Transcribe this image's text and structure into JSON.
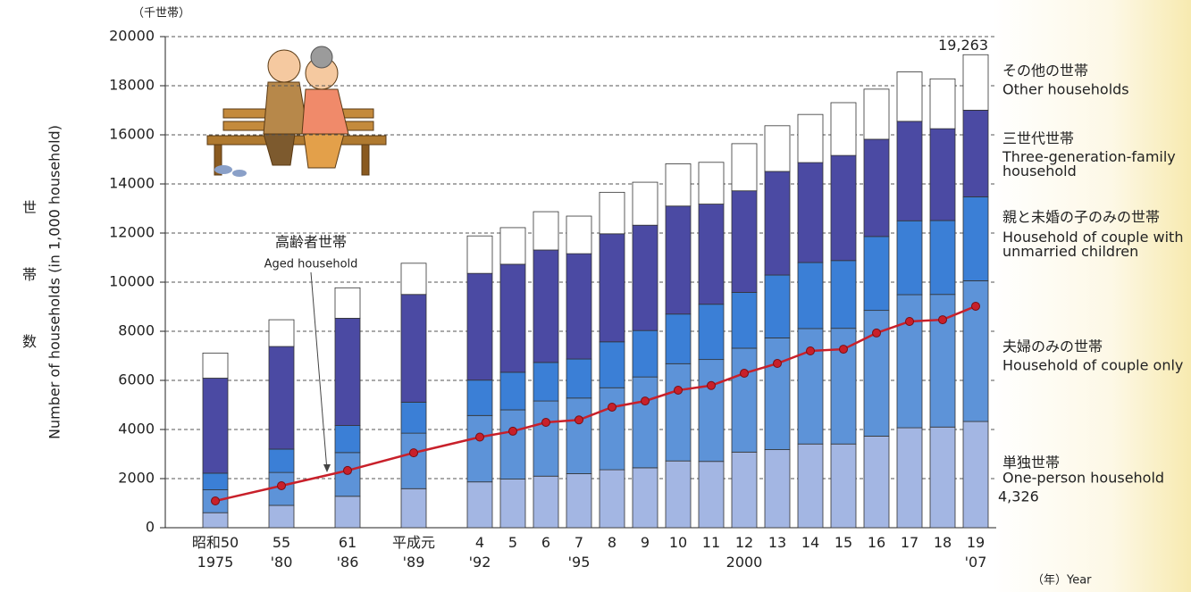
{
  "chart_data": {
    "type": "stacked_bar_line",
    "y_unit": "（千世帯）",
    "y_label_ja": "世帯数",
    "y_label": "Number of households (in 1,000 household)",
    "x_label": "（年）Year",
    "categories": [
      "昭和50\n1975",
      "55\n'80",
      "61\n'86",
      "平成元\n'89",
      "4\n'92",
      "5",
      "6",
      "7\n'95",
      "8",
      "9",
      "10",
      "11",
      "12\n2000",
      "13",
      "14",
      "15",
      "16",
      "17",
      "18",
      "19\n'07"
    ],
    "ylim": [
      0,
      20000
    ],
    "yticks": [
      0,
      2000,
      4000,
      6000,
      8000,
      10000,
      12000,
      14000,
      16000,
      18000,
      20000
    ],
    "grid": true,
    "series": [
      {
        "name": "単独世帯",
        "name_en": "One-person household",
        "color": "#a3b6e3",
        "values": [
          611,
          910,
          1280,
          1590,
          1865,
          1980,
          2100,
          2200,
          2360,
          2440,
          2720,
          2700,
          3080,
          3180,
          3410,
          3410,
          3730,
          4070,
          4100,
          4326
        ],
        "value_labels": [
          null,
          null,
          null,
          null,
          null,
          null,
          null,
          null,
          null,
          null,
          null,
          null,
          null,
          null,
          null,
          null,
          null,
          null,
          null,
          "4,326"
        ]
      },
      {
        "name": "夫婦のみの世帯",
        "name_en": "Household of couple only",
        "color": "#5d93d8",
        "values": [
          931,
          1340,
          1780,
          2260,
          2706,
          2820,
          3060,
          3080,
          3340,
          3700,
          3960,
          4150,
          4230,
          4550,
          4700,
          4710,
          5120,
          5420,
          5400,
          5732
        ]
      },
      {
        "name": "親と未婚の子のみの世帯",
        "name_en": "Household of couple with unmarried children",
        "color": "#3b7fd6",
        "values": [
          678,
          950,
          1100,
          1260,
          1439,
          1530,
          1570,
          1590,
          1870,
          1890,
          2020,
          2250,
          2270,
          2560,
          2690,
          2760,
          3010,
          3010,
          3010,
          3418
        ]
      },
      {
        "name": "三世代世帯",
        "name_en": "Three-generation-family household",
        "color": "#4b4aa3",
        "values": [
          3871,
          4180,
          4370,
          4390,
          4348,
          4400,
          4580,
          4290,
          4400,
          4290,
          4400,
          4080,
          4140,
          4220,
          4070,
          4280,
          3960,
          4050,
          3740,
          3528
        ]
      },
      {
        "name": "その他の世帯",
        "name_en": "Other households",
        "color": "#ffffff",
        "values": [
          1023,
          1090,
          1240,
          1270,
          1526,
          1490,
          1560,
          1530,
          1690,
          1750,
          1720,
          1700,
          1920,
          1860,
          1960,
          2150,
          2040,
          2010,
          2030,
          2259
        ]
      },
      {
        "name": "高齢者世帯",
        "name_en": "Aged household",
        "color": "#c8202a",
        "kind": "line",
        "values": [
          1090,
          1710,
          2330,
          3050,
          3690,
          3930,
          4290,
          4390,
          4910,
          5160,
          5600,
          5790,
          6290,
          6690,
          7200,
          7270,
          7930,
          8400,
          8470,
          9020
        ]
      }
    ],
    "total_annotation": {
      "value": 19263,
      "label": "19,263"
    }
  }
}
